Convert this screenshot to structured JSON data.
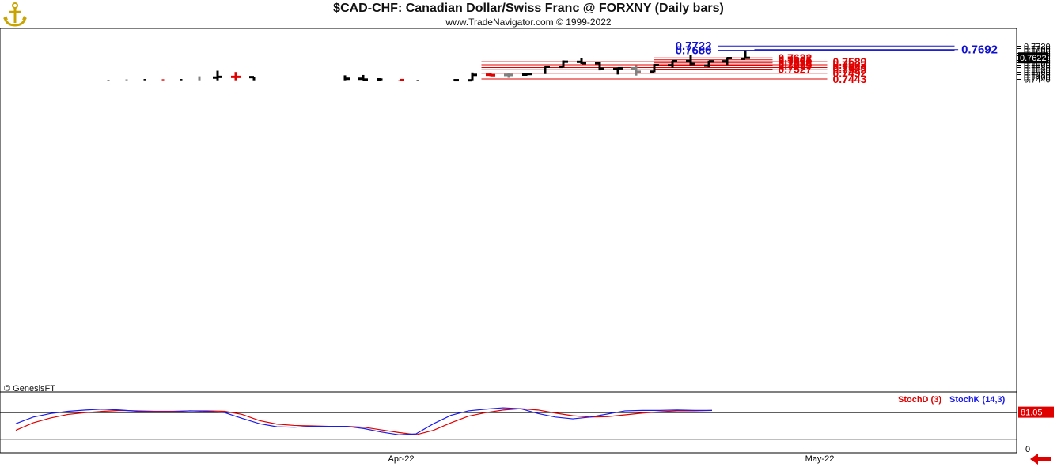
{
  "header": {
    "title": "$CAD-CHF:  Canadian Dollar/Swiss Franc @ FORXNY  (Daily bars)",
    "subtitle": "www.TradeNavigator.com © 1999-2022",
    "credit": "© GenesisFT"
  },
  "colors": {
    "up_bar": "#000000",
    "down_bar": "#808080",
    "red_bar": "#e00000",
    "fib_blue": "#1010d0",
    "fib_red": "#e00000",
    "stoch_d": "#e00000",
    "stoch_k": "#1a1aee",
    "price_tag_bg": "#000000"
  },
  "indicator": {
    "stoch_d_label": "StochD (3)",
    "stoch_k_label": "StochK (14,3)",
    "value_label": "81.05",
    "zero_label": "0"
  },
  "chart_data": {
    "type": "bar",
    "title": "$CAD-CHF:  Canadian Dollar/Swiss Franc @ FORXNY  (Daily bars)",
    "ylim": [
      0.7432,
      0.7738
    ],
    "y_ticks": [
      "0.7440",
      "0.7460",
      "0.7480",
      "0.7500",
      "0.7520",
      "0.7540",
      "0.7560",
      "0.7580",
      "0.7600",
      "0.7620",
      "0.7640",
      "0.7660",
      "0.7680",
      "0.7700",
      "0.7720"
    ],
    "x_labels": [
      {
        "label": "Apr-22",
        "bar": 16
      },
      {
        "label": "May-22",
        "bar": 39
      }
    ],
    "last_price_label": "0.7622",
    "ohlc": [
      {
        "h": 0.7435,
        "l": 0.7432,
        "o": null,
        "c": null,
        "color": "up"
      },
      {
        "h": 0.744,
        "l": 0.7432,
        "o": null,
        "c": null,
        "color": "down"
      },
      {
        "h": 0.7443,
        "l": 0.7432,
        "o": null,
        "c": null,
        "color": "up"
      },
      {
        "h": 0.7441,
        "l": 0.7432,
        "o": null,
        "c": null,
        "color": "red"
      },
      {
        "h": 0.7443,
        "l": 0.7432,
        "o": null,
        "c": null,
        "color": "up"
      },
      {
        "h": 0.7466,
        "l": 0.7432,
        "o": null,
        "c": null,
        "color": "down"
      },
      {
        "h": 0.7513,
        "l": 0.7432,
        "o": 0.7455,
        "c": 0.7461,
        "color": "up"
      },
      {
        "h": 0.7502,
        "l": 0.7432,
        "o": 0.7461,
        "c": 0.7461,
        "color": "red"
      },
      {
        "h": 0.7459,
        "l": 0.7432,
        "o": 0.7459,
        "c": null,
        "color": "up"
      },
      {
        "h": null,
        "l": null,
        "o": null,
        "c": null,
        "color": "none"
      },
      {
        "h": null,
        "l": null,
        "o": null,
        "c": null,
        "color": "none"
      },
      {
        "h": null,
        "l": null,
        "o": null,
        "c": null,
        "color": "none"
      },
      {
        "h": null,
        "l": null,
        "o": null,
        "c": null,
        "color": "none"
      },
      {
        "h": 0.7474,
        "l": 0.7432,
        "o": null,
        "c": 0.7445,
        "color": "up"
      },
      {
        "h": 0.7477,
        "l": 0.7432,
        "o": 0.7445,
        "c": 0.7438,
        "color": "up"
      },
      {
        "h": 0.7448,
        "l": 0.7432,
        "o": 0.744,
        "c": null,
        "color": "up"
      },
      {
        "h": 0.7435,
        "l": 0.7432,
        "o": null,
        "c": 0.7434,
        "color": "red"
      },
      {
        "h": 0.7436,
        "l": 0.7432,
        "o": null,
        "c": null,
        "color": "up"
      },
      {
        "h": null,
        "l": null,
        "o": null,
        "c": null,
        "color": "none"
      },
      {
        "h": 0.7441,
        "l": 0.7432,
        "o": null,
        "c": 0.7433,
        "color": "up"
      },
      {
        "h": 0.7498,
        "l": 0.7432,
        "o": 0.7432,
        "c": 0.7478,
        "color": "up"
      },
      {
        "h": 0.7491,
        "l": 0.7467,
        "o": 0.7479,
        "c": 0.7475,
        "color": "red"
      },
      {
        "h": 0.7495,
        "l": 0.7453,
        "o": 0.7477,
        "c": 0.7477,
        "color": "down"
      },
      {
        "h": 0.7485,
        "l": 0.7472,
        "o": 0.748,
        "c": 0.7485,
        "color": "up"
      },
      {
        "h": 0.7549,
        "l": 0.7485,
        "o": null,
        "c": 0.7547,
        "color": "up"
      },
      {
        "h": 0.76,
        "l": 0.754,
        "o": 0.7546,
        "c": 0.7589,
        "color": "up"
      },
      {
        "h": 0.762,
        "l": 0.757,
        "o": 0.7588,
        "c": 0.7577,
        "color": "up"
      },
      {
        "h": 0.7587,
        "l": 0.7516,
        "o": 0.7577,
        "c": 0.753,
        "color": "up"
      },
      {
        "h": 0.754,
        "l": 0.7481,
        "o": 0.7527,
        "c": 0.7534,
        "color": "up"
      },
      {
        "h": 0.7559,
        "l": 0.7472,
        "o": 0.7533,
        "c": 0.7504,
        "color": "down"
      },
      {
        "h": 0.7569,
        "l": 0.75,
        "o": 0.7505,
        "c": 0.756,
        "color": "up"
      },
      {
        "h": 0.7597,
        "l": 0.7538,
        "o": 0.7559,
        "c": 0.7594,
        "color": "up"
      },
      {
        "h": 0.7646,
        "l": 0.756,
        "o": 0.7595,
        "c": 0.7571,
        "color": "up"
      },
      {
        "h": 0.7598,
        "l": 0.7542,
        "o": 0.7556,
        "c": 0.7592,
        "color": "up"
      },
      {
        "h": 0.7628,
        "l": 0.7562,
        "o": 0.7592,
        "c": 0.762,
        "color": "up"
      },
      {
        "h": 0.7686,
        "l": 0.7614,
        "o": 0.7615,
        "c": 0.7622,
        "color": "up"
      }
    ],
    "fib_levels": [
      {
        "value": 0.7722,
        "label": "0.7722",
        "color": "blue",
        "x0_bar": 33.5,
        "x1_bar": 46.5,
        "label_side": "left"
      },
      {
        "value": 0.7692,
        "label": "0.7692",
        "color": "blue",
        "x0_bar": 35.5,
        "x1_bar": 46.7,
        "label_side": "right"
      },
      {
        "value": 0.7686,
        "label": "0.7686",
        "color": "blue",
        "x0_bar": 33.5,
        "x1_bar": 46.5,
        "label_side": "left"
      },
      {
        "value": 0.7622,
        "label": "0.7622",
        "color": "red",
        "x0_bar": 30.0,
        "x1_bar": 36.5,
        "label_side": "near"
      },
      {
        "value": 0.7605,
        "label": "0.7605",
        "color": "red",
        "x0_bar": 30.0,
        "x1_bar": 36.5,
        "label_side": "near"
      },
      {
        "value": 0.759,
        "label": "0.7590",
        "color": "red",
        "x0_bar": 30.0,
        "x1_bar": 36.5,
        "label_side": "near"
      },
      {
        "value": 0.7589,
        "label": "0.7589",
        "color": "red",
        "x0_bar": 20.5,
        "x1_bar": 39.5,
        "label_side": "far"
      },
      {
        "value": 0.7578,
        "label": "0.7578",
        "color": "red",
        "x0_bar": 30.0,
        "x1_bar": 36.5,
        "label_side": "near"
      },
      {
        "value": 0.7563,
        "label": "0.7563",
        "color": "red",
        "x0_bar": 20.5,
        "x1_bar": 39.5,
        "label_side": "far"
      },
      {
        "value": 0.7559,
        "label": "0.7559",
        "color": "red",
        "x0_bar": 30.0,
        "x1_bar": 36.5,
        "label_side": "near"
      },
      {
        "value": 0.754,
        "label": "0.7540",
        "color": "red",
        "x0_bar": 20.5,
        "x1_bar": 39.5,
        "label_side": "far"
      },
      {
        "value": 0.7527,
        "label": "0.7527",
        "color": "red",
        "x0_bar": 30.0,
        "x1_bar": 36.5,
        "label_side": "near"
      },
      {
        "value": 0.7522,
        "label": "0.7522",
        "color": "red",
        "x0_bar": 20.5,
        "x1_bar": 39.5,
        "label_side": "far"
      },
      {
        "value": 0.7492,
        "label": "0.7492",
        "color": "red",
        "x0_bar": 20.5,
        "x1_bar": 39.5,
        "label_side": "far"
      },
      {
        "value": 0.7443,
        "label": "0.7443",
        "color": "red",
        "x0_bar": 20.5,
        "x1_bar": 39.5,
        "label_side": "far"
      }
    ],
    "stochastic": {
      "ylim": [
        0,
        100
      ],
      "ref_lines": [
        80,
        20
      ],
      "stoch_k": [
        55,
        70,
        78,
        83,
        86,
        88,
        86,
        83,
        82,
        82,
        84,
        83,
        80,
        67,
        55,
        48,
        47,
        49,
        49,
        49,
        44,
        36,
        30,
        32,
        55,
        74,
        84,
        88,
        91,
        89,
        78,
        70,
        66,
        70,
        77,
        84,
        85,
        85,
        86,
        85,
        85
      ],
      "stoch_d": [
        40,
        57,
        68,
        76,
        80,
        83,
        85,
        84,
        83,
        83,
        84,
        84,
        83,
        76,
        62,
        54,
        51,
        50,
        49,
        49,
        47,
        41,
        35,
        30,
        40,
        57,
        72,
        80,
        86,
        89,
        86,
        79,
        73,
        70,
        71,
        75,
        79,
        82,
        84,
        84,
        85
      ]
    }
  }
}
